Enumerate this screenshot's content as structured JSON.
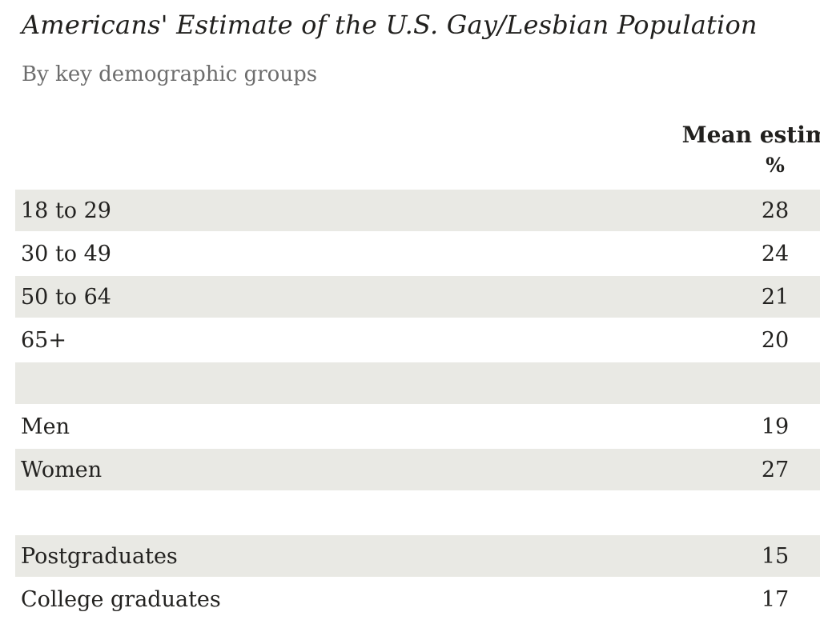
{
  "page": {
    "title": "Americans' Estimate of the U.S. Gay/Lesbian Population",
    "subtitle": "By key demographic groups"
  },
  "table": {
    "value_column_header": "Mean estimate",
    "value_unit_label": "%",
    "rows": [
      {
        "label": "18 to 29",
        "value": "28",
        "shaded": true,
        "spacer": false
      },
      {
        "label": "30 to 49",
        "value": "24",
        "shaded": false,
        "spacer": false
      },
      {
        "label": "50 to 64",
        "value": "21",
        "shaded": true,
        "spacer": false
      },
      {
        "label": "65+",
        "value": "20",
        "shaded": false,
        "spacer": false
      },
      {
        "label": "",
        "value": "",
        "shaded": true,
        "spacer": true
      },
      {
        "label": "Men",
        "value": "19",
        "shaded": false,
        "spacer": false
      },
      {
        "label": "Women",
        "value": "27",
        "shaded": true,
        "spacer": false
      },
      {
        "label": "",
        "value": "",
        "shaded": false,
        "spacer": true
      },
      {
        "label": "Postgraduates",
        "value": "15",
        "shaded": true,
        "spacer": false
      },
      {
        "label": "College graduates",
        "value": "17",
        "shaded": false,
        "spacer": false
      }
    ]
  },
  "colors": {
    "row_shading": "#e9e9e4",
    "text": "#232220",
    "title_text": "#21201e",
    "subtitle_text": "#6d6d6d",
    "background": "#ffffff"
  },
  "chart_data": {
    "type": "table",
    "title": "Americans' Estimate of the U.S. Gay/Lesbian Population",
    "subtitle": "By key demographic groups",
    "value_column_header": "Mean estimate",
    "value_unit": "%",
    "categories": [
      "18 to 29",
      "30 to 49",
      "50 to 64",
      "65+",
      "Men",
      "Women",
      "Postgraduates",
      "College graduates"
    ],
    "values": [
      28,
      24,
      21,
      20,
      19,
      27,
      15,
      17
    ]
  }
}
